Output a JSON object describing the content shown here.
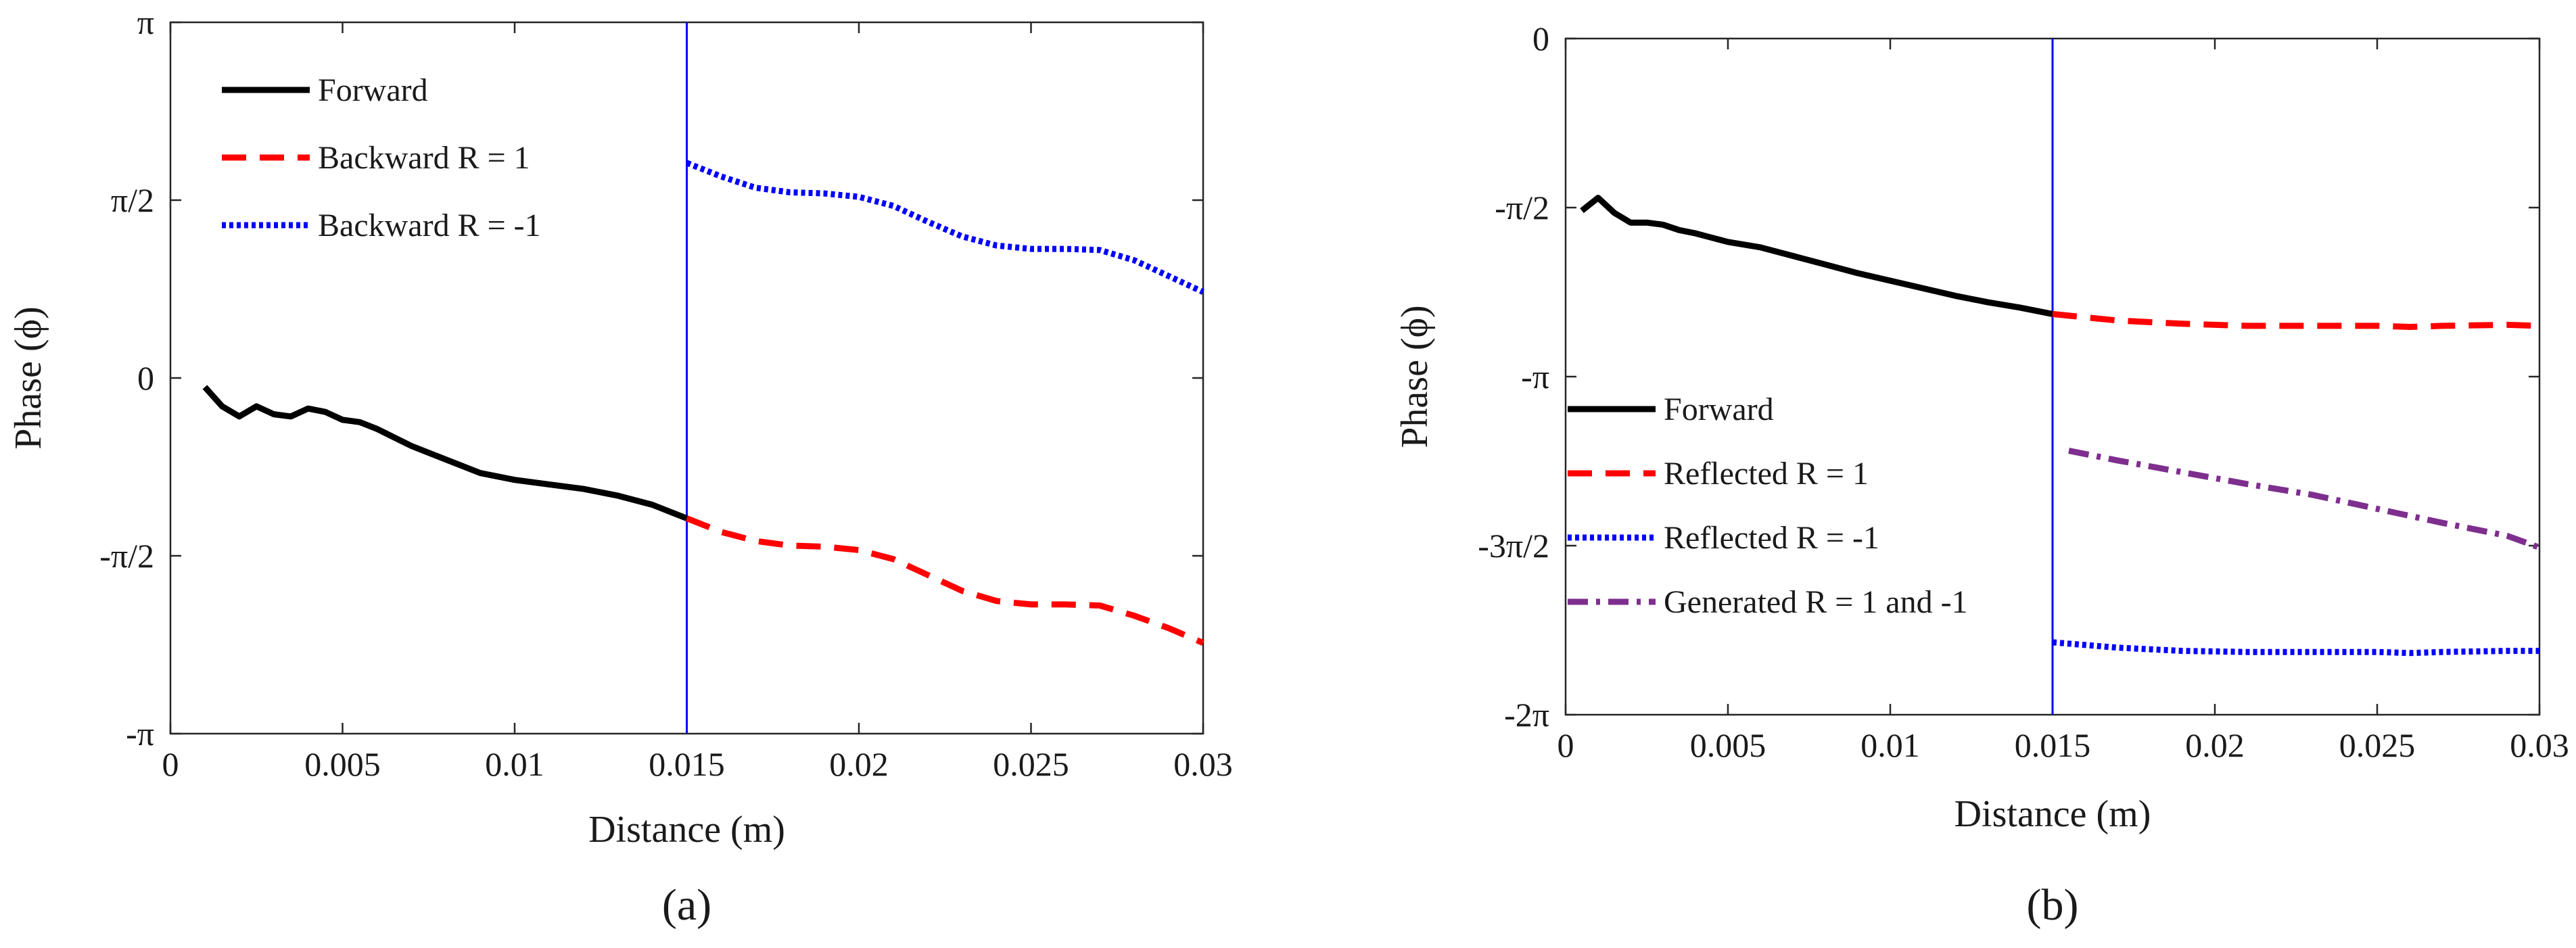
{
  "chart_data": [
    {
      "type": "line",
      "panel_label": "a",
      "caption": "(a)",
      "xlabel": "Distance (m)",
      "ylabel": "Phase (ϕ)",
      "xlim": [
        0,
        0.03
      ],
      "ylim": [
        -3.14159,
        3.14159
      ],
      "xticks": [
        0,
        0.005,
        0.01,
        0.015,
        0.02,
        0.025,
        0.03
      ],
      "xtick_labels": [
        "0",
        "0.005",
        "0.01",
        "0.015",
        "0.02",
        "0.025",
        "0.03"
      ],
      "yticks": [
        -3.14159,
        -1.5708,
        0,
        1.5708,
        3.14159
      ],
      "ytick_labels": [
        "-π",
        "-π/2",
        "0",
        "π/2",
        "π"
      ],
      "vline_x": 0.015,
      "legend_position": "top-left",
      "series": [
        {
          "name": "Forward",
          "style": "solid",
          "color": "#000000",
          "x": [
            0.001,
            0.0015,
            0.002,
            0.0025,
            0.003,
            0.0035,
            0.004,
            0.0045,
            0.005,
            0.0055,
            0.006,
            0.007,
            0.008,
            0.009,
            0.01,
            0.011,
            0.012,
            0.013,
            0.014,
            0.015
          ],
          "y": [
            -0.08,
            -0.25,
            -0.34,
            -0.25,
            -0.32,
            -0.34,
            -0.27,
            -0.3,
            -0.37,
            -0.39,
            -0.45,
            -0.6,
            -0.72,
            -0.84,
            -0.9,
            -0.94,
            -0.98,
            -1.04,
            -1.12,
            -1.24
          ]
        },
        {
          "name": "Backward R = 1",
          "style": "dashed",
          "color": "#ff0000",
          "x": [
            0.015,
            0.016,
            0.017,
            0.018,
            0.019,
            0.02,
            0.021,
            0.022,
            0.023,
            0.024,
            0.025,
            0.026,
            0.027,
            0.028,
            0.029,
            0.03
          ],
          "y": [
            -1.24,
            -1.36,
            -1.44,
            -1.48,
            -1.49,
            -1.52,
            -1.6,
            -1.74,
            -1.88,
            -1.97,
            -2.0,
            -2.0,
            -2.01,
            -2.1,
            -2.21,
            -2.34
          ]
        },
        {
          "name": "Backward R = -1",
          "style": "dotted",
          "color": "#0000ff",
          "x": [
            0.015,
            0.016,
            0.017,
            0.018,
            0.019,
            0.02,
            0.021,
            0.022,
            0.023,
            0.024,
            0.025,
            0.026,
            0.027,
            0.028,
            0.029,
            0.03
          ],
          "y": [
            1.9,
            1.78,
            1.68,
            1.64,
            1.63,
            1.6,
            1.52,
            1.38,
            1.25,
            1.17,
            1.14,
            1.14,
            1.13,
            1.04,
            0.9,
            0.76
          ]
        }
      ],
      "legend": [
        "Forward",
        "Backward R = 1",
        "Backward R = -1"
      ]
    },
    {
      "type": "line",
      "panel_label": "b",
      "caption": "(b)",
      "xlabel": "Distance (m)",
      "ylabel": "Phase (ϕ)",
      "xlim": [
        0,
        0.03
      ],
      "ylim": [
        -6.28319,
        0
      ],
      "xticks": [
        0,
        0.005,
        0.01,
        0.015,
        0.02,
        0.025,
        0.03
      ],
      "xtick_labels": [
        "0",
        "0.005",
        "0.01",
        "0.015",
        "0.02",
        "0.025",
        "0.03"
      ],
      "yticks": [
        -6.28319,
        -4.71239,
        -3.14159,
        -1.5708,
        0
      ],
      "ytick_labels": [
        "-2π",
        "-3π/2",
        "-π",
        "-π/2",
        "0"
      ],
      "vline_x": 0.015,
      "legend_position": "center-left",
      "series": [
        {
          "name": "Forward",
          "style": "solid",
          "color": "#000000",
          "x": [
            0.0005,
            0.001,
            0.0015,
            0.002,
            0.0025,
            0.003,
            0.0035,
            0.004,
            0.005,
            0.006,
            0.007,
            0.008,
            0.009,
            0.01,
            0.011,
            0.012,
            0.013,
            0.014,
            0.015
          ],
          "y": [
            -1.6,
            -1.48,
            -1.62,
            -1.71,
            -1.71,
            -1.73,
            -1.78,
            -1.81,
            -1.89,
            -1.94,
            -2.02,
            -2.1,
            -2.18,
            -2.25,
            -2.32,
            -2.39,
            -2.45,
            -2.5,
            -2.56
          ]
        },
        {
          "name": "Reflected R = 1",
          "style": "dashed",
          "color": "#ff0000",
          "x": [
            0.015,
            0.017,
            0.019,
            0.021,
            0.023,
            0.025,
            0.026,
            0.027,
            0.029,
            0.03
          ],
          "y": [
            -2.56,
            -2.62,
            -2.65,
            -2.67,
            -2.67,
            -2.67,
            -2.68,
            -2.67,
            -2.66,
            -2.67
          ]
        },
        {
          "name": "Reflected R = -1",
          "style": "dotted",
          "color": "#0000ff",
          "x": [
            0.015,
            0.017,
            0.019,
            0.021,
            0.023,
            0.025,
            0.026,
            0.027,
            0.029,
            0.03
          ],
          "y": [
            -5.61,
            -5.66,
            -5.69,
            -5.7,
            -5.7,
            -5.7,
            -5.71,
            -5.7,
            -5.69,
            -5.69
          ]
        },
        {
          "name": "Generated R = 1 and -1",
          "style": "dashdot",
          "color": "#7e2f8e",
          "x": [
            0.0155,
            0.017,
            0.019,
            0.021,
            0.023,
            0.025,
            0.027,
            0.029,
            0.03
          ],
          "y": [
            -3.83,
            -3.92,
            -4.03,
            -4.14,
            -4.24,
            -4.37,
            -4.5,
            -4.62,
            -4.73
          ]
        }
      ],
      "legend": [
        "Forward",
        "Reflected R = 1",
        "Reflected R = -1",
        "Generated R = 1 and -1"
      ]
    }
  ]
}
